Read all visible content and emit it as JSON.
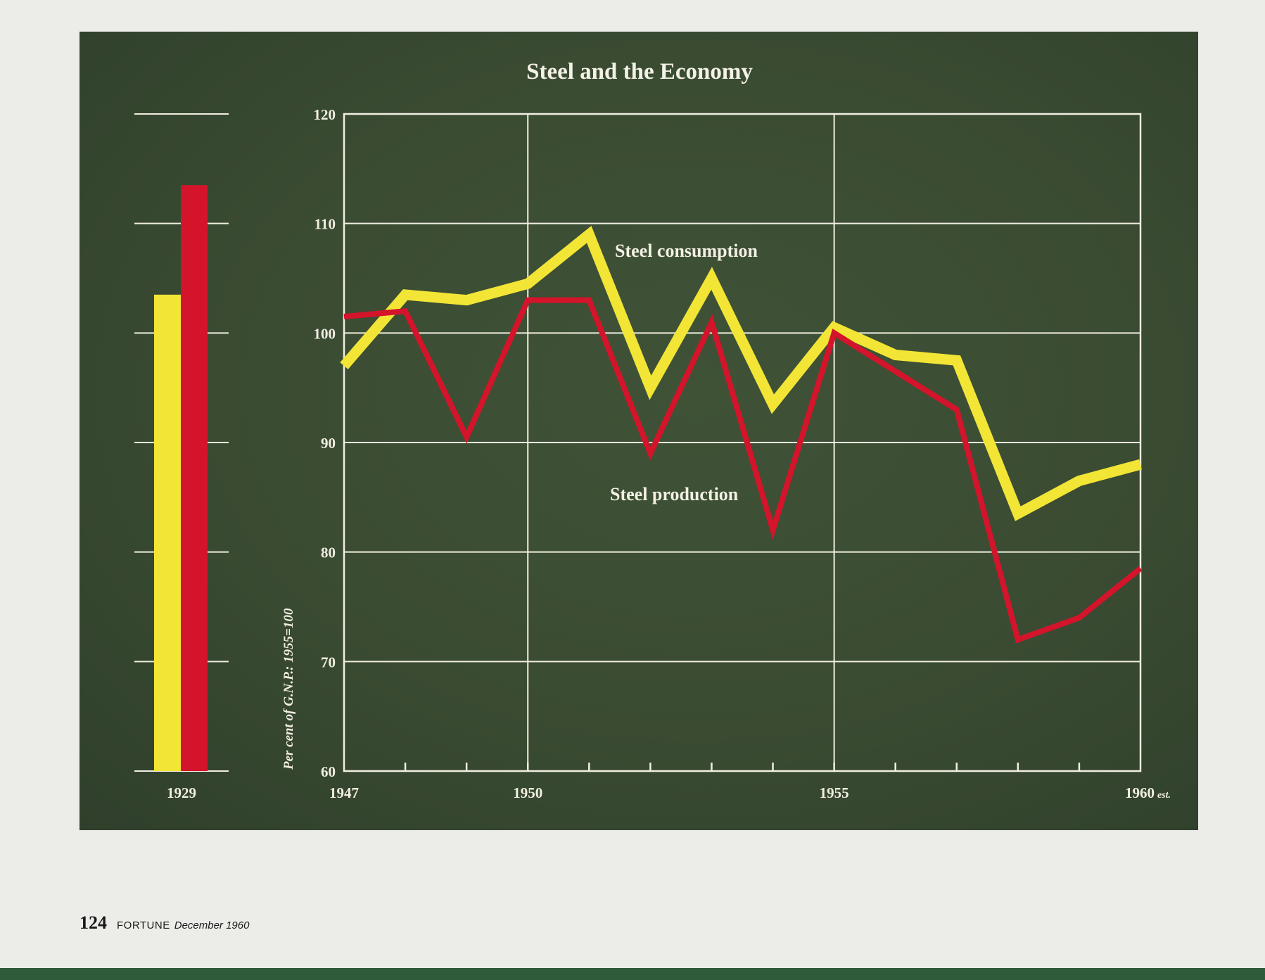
{
  "chart_data": [
    {
      "type": "bar",
      "categories": [
        "1929"
      ],
      "series": [
        {
          "name": "Steel consumption",
          "values": [
            103.5
          ],
          "color": "#f2e535"
        },
        {
          "name": "Steel production",
          "values": [
            113.5
          ],
          "color": "#d4142b"
        }
      ],
      "ylim": [
        60,
        120
      ],
      "grid": true
    },
    {
      "type": "line",
      "title": "Steel and the Economy",
      "ylabel": "Per cent of G.N.P.: 1955=100",
      "x": [
        1947,
        1948,
        1949,
        1950,
        1951,
        1952,
        1953,
        1954,
        1955,
        1956,
        1957,
        1958,
        1959,
        1960
      ],
      "x_tick_labels": [
        "1947",
        "1950",
        "1955",
        "1960"
      ],
      "x_tick_suffix": "est.",
      "y_ticks": [
        60,
        70,
        80,
        90,
        100,
        110,
        120
      ],
      "ylim": [
        60,
        120
      ],
      "xlim": [
        1947,
        1960
      ],
      "grid": true,
      "series": [
        {
          "name": "Steel consumption",
          "color": "#f2e535",
          "values": [
            97,
            103.5,
            103,
            104.5,
            109,
            95,
            105,
            93.5,
            100.5,
            98,
            97.5,
            83.5,
            86.5,
            88
          ]
        },
        {
          "name": "Steel production",
          "color": "#d4142b",
          "values": [
            101.5,
            102,
            90.5,
            103,
            103,
            89,
            101,
            82,
            100,
            96.5,
            93,
            72,
            74,
            78.5
          ]
        }
      ]
    }
  ],
  "footer": {
    "page_number": "124",
    "magazine": "FORTUNE",
    "issue": "December 1960"
  },
  "colors": {
    "panel": "#3a4b32",
    "grid": "#f1eee2",
    "consumption": "#f2e535",
    "production": "#d4142b"
  }
}
